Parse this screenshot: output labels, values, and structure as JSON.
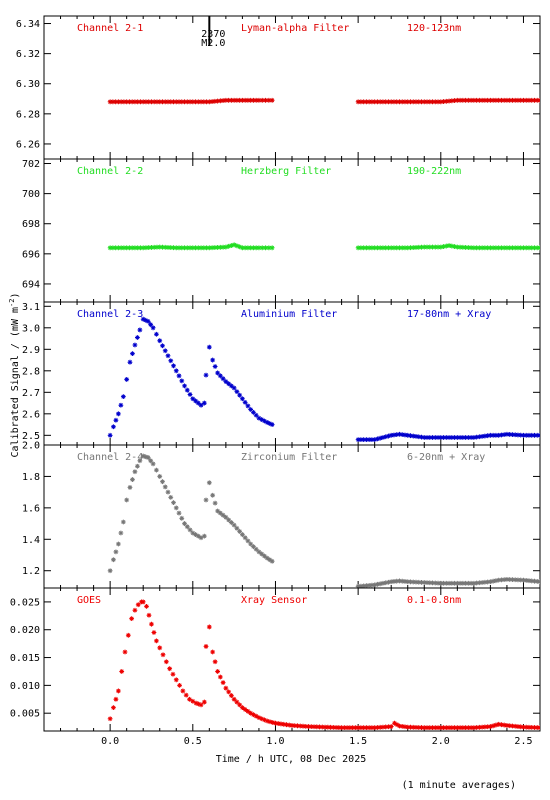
{
  "figure": {
    "x_axis_label": "Time / h UTC, 08 Dec 2025",
    "y_axis_label": "Calibrated Signal / (mW m",
    "y_axis_label_sup": "-2",
    "y_axis_label_end": ")",
    "footnote": "(1 minute averages)",
    "flare_marker": {
      "time_h": 0.6,
      "line1": "2370",
      "line2": "M2.0"
    }
  },
  "chart_data": [
    {
      "type": "scatter",
      "title": "Channel 2-1",
      "filter": "Lyman-alpha Filter",
      "band": "120-123nm",
      "color": "#dd0000",
      "xlim": [
        -0.4,
        2.6
      ],
      "ylim": [
        6.25,
        6.345
      ],
      "yticks": [
        6.26,
        6.28,
        6.3,
        6.32,
        6.34
      ],
      "ytick_labels": [
        "6.26",
        "6.28",
        "6.30",
        "6.32",
        "6.34"
      ],
      "series": [
        {
          "x": [
            0.0,
            0.1,
            0.2,
            0.3,
            0.4,
            0.5,
            0.6,
            0.7,
            0.8,
            0.9,
            0.98
          ],
          "y": [
            6.288,
            6.288,
            6.288,
            6.288,
            6.288,
            6.288,
            6.288,
            6.289,
            6.289,
            6.289,
            6.289
          ]
        },
        {
          "x": [
            1.5,
            1.6,
            1.7,
            1.8,
            1.9,
            2.0,
            2.1,
            2.2,
            2.3,
            2.4,
            2.5,
            2.6
          ],
          "y": [
            6.288,
            6.288,
            6.288,
            6.288,
            6.288,
            6.288,
            6.289,
            6.289,
            6.289,
            6.289,
            6.289,
            6.289
          ]
        }
      ]
    },
    {
      "type": "scatter",
      "title": "Channel 2-2",
      "filter": "Herzberg Filter",
      "band": "190-222nm",
      "color": "#22dd22",
      "xlim": [
        -0.4,
        2.6
      ],
      "ylim": [
        692.8,
        702.3
      ],
      "yticks": [
        694,
        696,
        698,
        700,
        702
      ],
      "ytick_labels": [
        "694",
        "696",
        "698",
        "700",
        "702"
      ],
      "series": [
        {
          "x": [
            0.0,
            0.1,
            0.2,
            0.3,
            0.4,
            0.5,
            0.6,
            0.7,
            0.75,
            0.8,
            0.9,
            0.98
          ],
          "y": [
            696.4,
            696.4,
            696.4,
            696.45,
            696.4,
            696.4,
            696.4,
            696.45,
            696.6,
            696.4,
            696.4,
            696.4
          ]
        },
        {
          "x": [
            1.5,
            1.6,
            1.7,
            1.8,
            1.9,
            2.0,
            2.05,
            2.1,
            2.2,
            2.3,
            2.4,
            2.5,
            2.6
          ],
          "y": [
            696.4,
            696.4,
            696.4,
            696.4,
            696.45,
            696.45,
            696.55,
            696.45,
            696.4,
            696.4,
            696.4,
            696.4,
            696.4
          ]
        }
      ]
    },
    {
      "type": "scatter",
      "title": "Channel 2-3",
      "filter": "Aluminium Filter",
      "band": "17-80nm + Xray",
      "color": "#0000cc",
      "xlim": [
        -0.4,
        2.6
      ],
      "ylim": [
        2.455,
        3.12
      ],
      "yticks": [
        2.5,
        2.6,
        2.7,
        2.8,
        2.9,
        3.0,
        3.1
      ],
      "ytick_labels": [
        "2.5",
        "2.6",
        "2.7",
        "2.8",
        "2.9",
        "3.0",
        "3.1"
      ],
      "series": [
        {
          "x": [
            0.0,
            0.02,
            0.05,
            0.08,
            0.1,
            0.12,
            0.15,
            0.18,
            0.2,
            0.23,
            0.26,
            0.3,
            0.35,
            0.4,
            0.45,
            0.5,
            0.55,
            0.57
          ],
          "y": [
            2.5,
            2.54,
            2.6,
            2.68,
            2.76,
            2.84,
            2.92,
            2.99,
            3.04,
            3.03,
            3.0,
            2.94,
            2.87,
            2.8,
            2.73,
            2.67,
            2.64,
            2.65
          ]
        },
        {
          "x": [
            0.58,
            0.6,
            0.62,
            0.65,
            0.7,
            0.75,
            0.8,
            0.85,
            0.9,
            0.95,
            0.98
          ],
          "y": [
            2.78,
            2.91,
            2.85,
            2.79,
            2.75,
            2.72,
            2.67,
            2.62,
            2.58,
            2.56,
            2.55
          ]
        },
        {
          "x": [
            1.5,
            1.6,
            1.7,
            1.75,
            1.8,
            1.9,
            2.0,
            2.1,
            2.2,
            2.3,
            2.35,
            2.4,
            2.5,
            2.6
          ],
          "y": [
            2.48,
            2.48,
            2.5,
            2.505,
            2.5,
            2.49,
            2.49,
            2.49,
            2.49,
            2.5,
            2.5,
            2.505,
            2.5,
            2.5
          ]
        }
      ]
    },
    {
      "type": "scatter",
      "title": "Channel 2-4",
      "filter": "Zirconium Filter",
      "band": "6-20nm + Xray",
      "color": "#777777",
      "xlim": [
        -0.4,
        2.6
      ],
      "ylim": [
        1.09,
        2.0
      ],
      "yticks": [
        1.2,
        1.4,
        1.6,
        1.8,
        2.0
      ],
      "ytick_labels": [
        "1.2",
        "1.4",
        "1.6",
        "1.8",
        "2.0"
      ],
      "series": [
        {
          "x": [
            0.0,
            0.02,
            0.05,
            0.08,
            0.1,
            0.12,
            0.15,
            0.18,
            0.2,
            0.23,
            0.26,
            0.3,
            0.35,
            0.4,
            0.45,
            0.5,
            0.55,
            0.57
          ],
          "y": [
            1.2,
            1.27,
            1.37,
            1.51,
            1.65,
            1.73,
            1.83,
            1.9,
            1.93,
            1.92,
            1.88,
            1.8,
            1.7,
            1.6,
            1.5,
            1.44,
            1.41,
            1.42
          ]
        },
        {
          "x": [
            0.58,
            0.6,
            0.62,
            0.65,
            0.7,
            0.75,
            0.8,
            0.85,
            0.9,
            0.95,
            0.98
          ],
          "y": [
            1.65,
            1.76,
            1.68,
            1.58,
            1.54,
            1.49,
            1.43,
            1.37,
            1.32,
            1.28,
            1.26
          ]
        },
        {
          "x": [
            1.5,
            1.6,
            1.7,
            1.75,
            1.8,
            1.9,
            2.0,
            2.1,
            2.2,
            2.3,
            2.35,
            2.4,
            2.5,
            2.6
          ],
          "y": [
            1.1,
            1.11,
            1.13,
            1.135,
            1.13,
            1.125,
            1.12,
            1.12,
            1.12,
            1.13,
            1.14,
            1.145,
            1.14,
            1.13
          ]
        }
      ]
    },
    {
      "type": "scatter",
      "title": "GOES",
      "filter": "Xray Sensor",
      "band": "0.1-0.8nm",
      "color": "#ee0000",
      "xlim": [
        -0.4,
        2.6
      ],
      "ylim": [
        0.0018,
        0.0275
      ],
      "yticks": [
        0.005,
        0.01,
        0.015,
        0.02,
        0.025
      ],
      "ytick_labels": [
        "0.005",
        "0.010",
        "0.015",
        "0.020",
        "0.025"
      ],
      "xticks": [
        0.0,
        0.5,
        1.0,
        1.5,
        2.0,
        2.5
      ],
      "xtick_labels": [
        "0.0",
        "0.5",
        "1.0",
        "1.5",
        "2.0",
        "2.5"
      ],
      "series": [
        {
          "x": [
            0.0,
            0.02,
            0.05,
            0.07,
            0.09,
            0.11,
            0.13,
            0.15,
            0.17,
            0.19,
            0.2,
            0.22,
            0.25,
            0.28,
            0.32,
            0.36,
            0.4,
            0.44,
            0.48,
            0.52,
            0.55,
            0.57
          ],
          "y": [
            0.004,
            0.006,
            0.009,
            0.0125,
            0.016,
            0.019,
            0.022,
            0.0235,
            0.0245,
            0.025,
            0.025,
            0.0242,
            0.021,
            0.018,
            0.0155,
            0.013,
            0.011,
            0.009,
            0.0075,
            0.0068,
            0.0065,
            0.007
          ]
        },
        {
          "x": [
            0.58,
            0.6,
            0.62,
            0.65,
            0.7,
            0.75,
            0.8,
            0.85,
            0.9,
            0.95,
            1.0,
            1.1,
            1.2,
            1.3,
            1.4,
            1.5,
            1.6,
            1.7,
            1.72,
            1.75,
            1.8,
            1.9,
            2.0,
            2.1,
            2.2,
            2.3,
            2.35,
            2.4,
            2.5,
            2.6
          ],
          "y": [
            0.017,
            0.0205,
            0.016,
            0.0125,
            0.0095,
            0.0075,
            0.006,
            0.005,
            0.0042,
            0.0036,
            0.0032,
            0.0028,
            0.0026,
            0.0025,
            0.0024,
            0.0024,
            0.0024,
            0.0026,
            0.0032,
            0.0027,
            0.0025,
            0.0024,
            0.0024,
            0.0024,
            0.0024,
            0.0026,
            0.003,
            0.0028,
            0.0025,
            0.0024
          ]
        }
      ]
    }
  ]
}
